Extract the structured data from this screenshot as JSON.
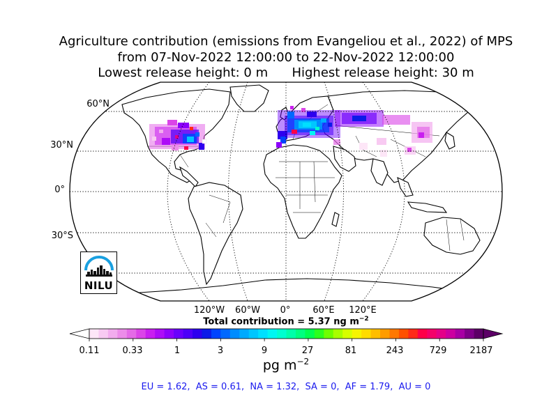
{
  "title": {
    "line1": "Agriculture contribution (emissions from Evangeliou et al., 2022) of MPS",
    "line2": "from 07-Nov-2022 12:00:00 to 22-Nov-2022 12:00:00",
    "line3": "Lowest release height: 0 m      Highest release height: 30 m"
  },
  "map": {
    "projection": "Robinson",
    "lat_labels": [
      "60°N",
      "30°N",
      "0°",
      "30°S"
    ],
    "lon_labels": [
      "120°W",
      "60°W",
      "0°",
      "60°E",
      "120°E"
    ]
  },
  "total_contribution": {
    "label": "Total contribution = 5.37 ng m",
    "exponent": "−2"
  },
  "colorbar": {
    "tick_labels": [
      "0.11",
      "0.33",
      "1",
      "3",
      "9",
      "27",
      "81",
      "243",
      "729",
      "2187"
    ],
    "unit_base": "pg m",
    "unit_exponent": "−2",
    "colors": [
      "#fde6f7",
      "#f8caf2",
      "#f2acee",
      "#ec8ce9",
      "#e46ae7",
      "#db44e8",
      "#c91ff0",
      "#ad0cf7",
      "#8d00fb",
      "#6a00fc",
      "#4d00f8",
      "#2d00ef",
      "#0c1ae8",
      "#0044ff",
      "#0068ff",
      "#008cff",
      "#00aaff",
      "#00c6ff",
      "#00e0ff",
      "#00f6f2",
      "#00ffd0",
      "#00ffaa",
      "#00ff80",
      "#00ff50",
      "#2bff1e",
      "#6eff00",
      "#a8ff00",
      "#d6ff00",
      "#f6f400",
      "#ffdc00",
      "#ffbe00",
      "#ff9c00",
      "#ff7800",
      "#ff5000",
      "#ff2a18",
      "#ff0048",
      "#f4006a",
      "#e40088",
      "#cc00a0",
      "#a800a4",
      "#7e0088",
      "#5c0066"
    ]
  },
  "regions_text": "EU = 1.62,  AS = 0.61,  NA = 1.32,  SA = 0,  AF = 1.79,  AU = 0",
  "logo": {
    "text": "NILU"
  }
}
